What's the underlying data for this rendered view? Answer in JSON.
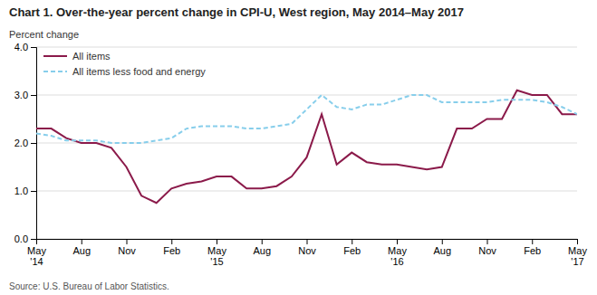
{
  "chart_data": {
    "type": "line",
    "title": "Chart 1. Over-the-year percent change in CPI-U, West region, May 2014–May 2017",
    "y_label": "Percent change",
    "source": "Source: U.S. Bureau of Labor Statistics.",
    "categories": [
      "May\n'14",
      null,
      null,
      "Aug",
      null,
      null,
      "Nov",
      null,
      null,
      "Feb",
      null,
      null,
      "May\n'15",
      null,
      null,
      "Aug",
      null,
      null,
      "Nov",
      null,
      null,
      "Feb",
      null,
      null,
      "May\n'16",
      null,
      null,
      "Aug",
      null,
      null,
      "Nov",
      null,
      null,
      "Feb",
      null,
      null,
      "May\n'17"
    ],
    "series": [
      {
        "name": "All items",
        "color": "#8B1A4A",
        "line_style": "solid",
        "values": [
          2.3,
          2.3,
          2.1,
          2.0,
          2.0,
          1.9,
          1.5,
          0.9,
          0.75,
          1.05,
          1.15,
          1.2,
          1.3,
          1.3,
          1.05,
          1.05,
          1.1,
          1.3,
          1.7,
          2.6,
          1.55,
          1.8,
          1.6,
          1.55,
          1.55,
          1.5,
          1.45,
          1.5,
          2.3,
          2.3,
          2.5,
          2.5,
          3.1,
          3.0,
          3.0,
          2.6,
          2.6
        ]
      },
      {
        "name": "All items less food and energy",
        "color": "#87CEEB",
        "line_style": "dashed",
        "values": [
          2.2,
          2.15,
          2.05,
          2.05,
          2.05,
          2.0,
          2.0,
          2.0,
          2.05,
          2.1,
          2.3,
          2.35,
          2.35,
          2.35,
          2.3,
          2.3,
          2.35,
          2.4,
          2.7,
          3.0,
          2.75,
          2.7,
          2.8,
          2.8,
          2.9,
          3.0,
          3.0,
          2.85,
          2.85,
          2.85,
          2.85,
          2.9,
          2.9,
          2.9,
          2.85,
          2.75,
          2.6
        ]
      }
    ],
    "ylim": [
      0.0,
      4.0
    ],
    "yticks": [
      {
        "value": 0.0,
        "label": "0.0"
      },
      {
        "value": 1.0,
        "label": "1.0"
      },
      {
        "value": 2.0,
        "label": "2.0"
      },
      {
        "value": 3.0,
        "label": "3.0"
      },
      {
        "value": 4.0,
        "label": "4.0"
      }
    ],
    "grid": true,
    "legend": "upper left"
  }
}
